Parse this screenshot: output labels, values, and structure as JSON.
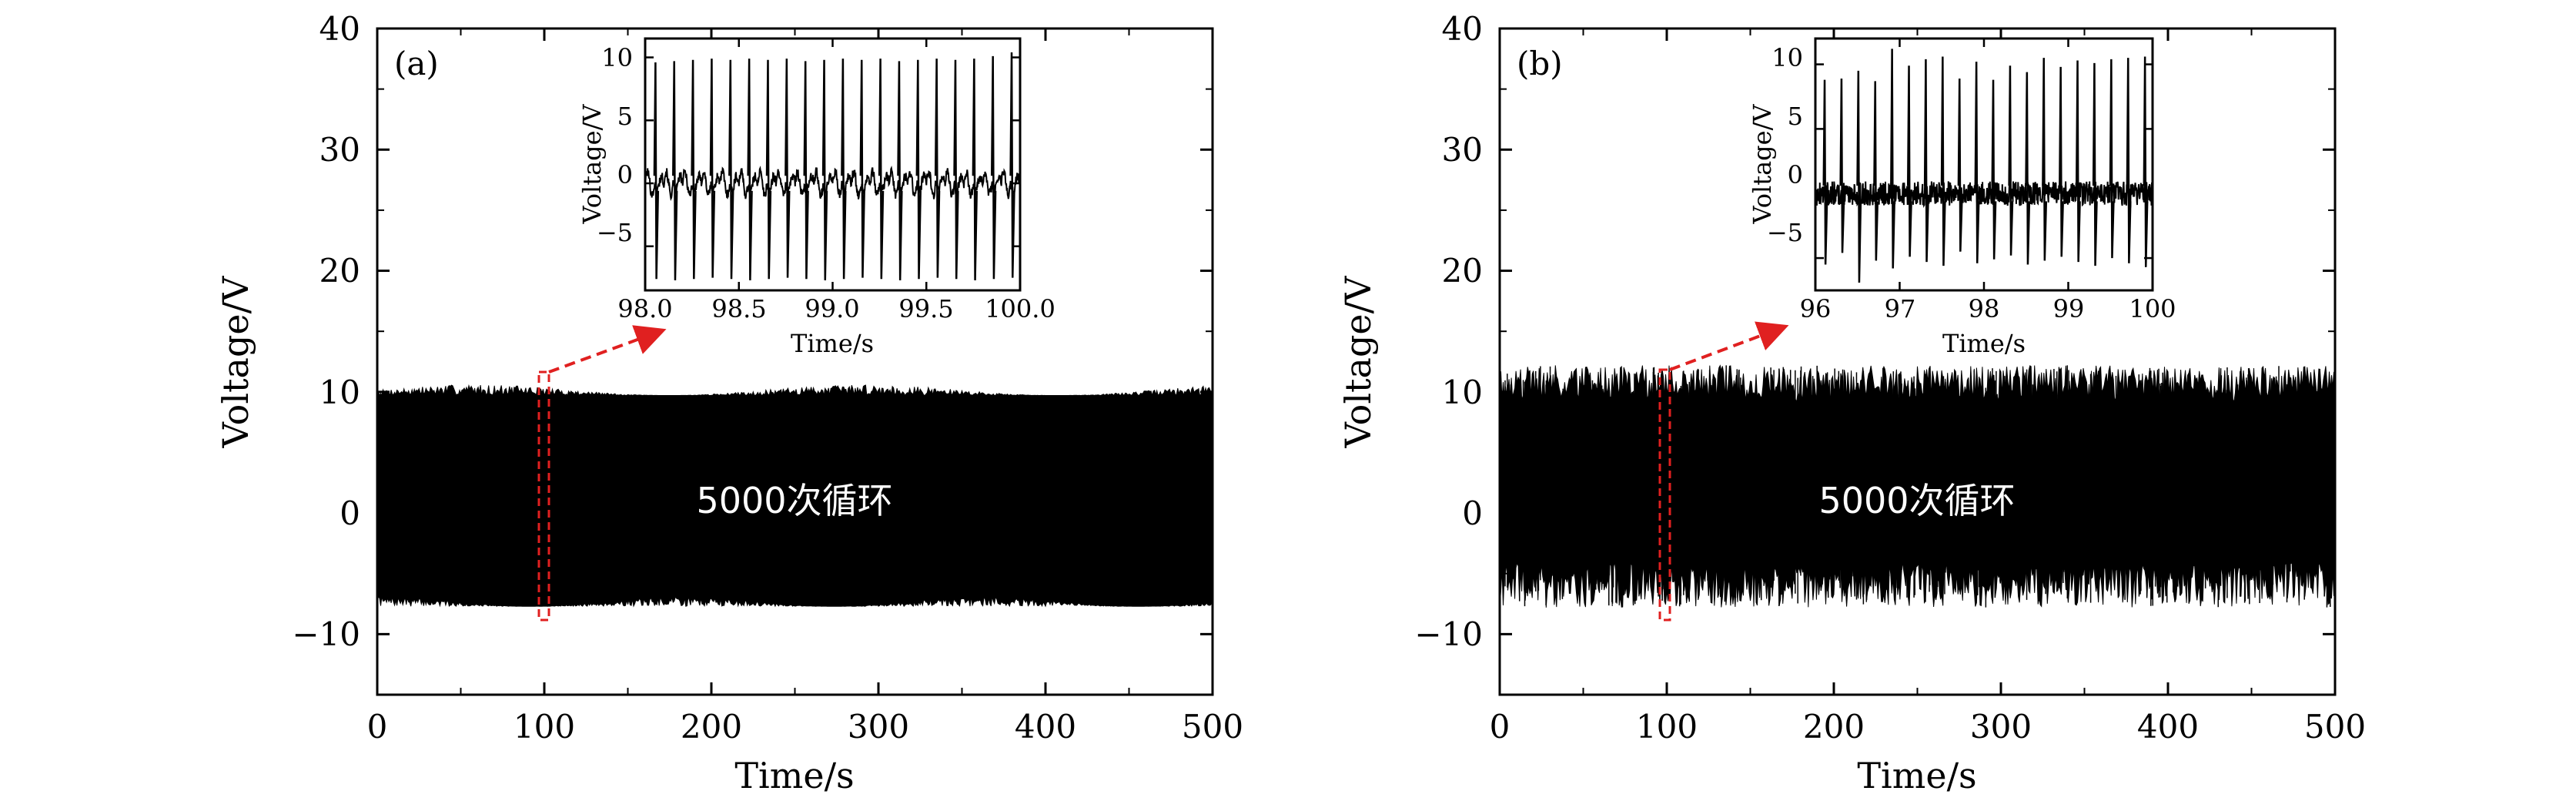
{
  "figure": {
    "background": "#ffffff",
    "ink": "#000000",
    "highlight": "#e02020",
    "overlay_text": "#ffffff"
  },
  "chart_data": [
    {
      "type": "line",
      "panel_label": "(a)",
      "xlabel": "Time/s",
      "ylabel": "Voltage/V",
      "xlim": [
        0,
        500
      ],
      "ylim": [
        -15,
        40
      ],
      "xticks": [
        0,
        100,
        200,
        300,
        400,
        500
      ],
      "yticks": [
        -10,
        0,
        10,
        20,
        30,
        40
      ],
      "ytick_labels": [
        "−10",
        "0",
        "10",
        "20",
        "30",
        "40"
      ],
      "annotation": "5000次循环",
      "signal": {
        "envelope_max": 10.2,
        "envelope_min": -7.8,
        "highlight_window": [
          98,
          100
        ]
      },
      "inset": {
        "type": "line",
        "xlabel": "Time/s",
        "ylabel": "Voltage/V",
        "xlim": [
          98,
          100
        ],
        "ylim": [
          -8.5,
          11.5
        ],
        "xticks": [
          98.0,
          98.5,
          99.0,
          99.5,
          100.0
        ],
        "xtick_labels": [
          "98.0",
          "98.5",
          "99.0",
          "99.5",
          "100.0"
        ],
        "yticks": [
          -5,
          0,
          5,
          10
        ],
        "ytick_labels": [
          "−5",
          "0",
          "5",
          "10"
        ],
        "spike_count": 20,
        "spike_peaks": [
          9.6,
          9.7,
          9.8,
          9.9,
          9.8,
          9.9,
          9.8,
          9.9,
          9.7,
          9.8,
          9.9,
          9.8,
          9.9,
          9.7,
          9.8,
          9.9,
          9.8,
          9.9,
          10.1,
          10.4
        ],
        "spike_troughs": [
          -7.6,
          -7.7,
          -7.6,
          -7.5,
          -7.6,
          -7.7,
          -7.6,
          -7.5,
          -7.6,
          -7.7,
          -7.6,
          -7.5,
          -7.6,
          -7.7,
          -7.6,
          -7.5,
          -7.6,
          -7.7,
          -7.6,
          -7.5
        ],
        "baseline_low": -1.5,
        "baseline_high": 1.2
      }
    },
    {
      "type": "line",
      "panel_label": "(b)",
      "xlabel": "Time/s",
      "ylabel": "Voltage/V",
      "xlim": [
        0,
        500
      ],
      "ylim": [
        -15,
        40
      ],
      "xticks": [
        0,
        100,
        200,
        300,
        400,
        500
      ],
      "yticks": [
        -10,
        0,
        10,
        20,
        30,
        40
      ],
      "ytick_labels": [
        "−10",
        "0",
        "10",
        "20",
        "30",
        "40"
      ],
      "annotation": "5000次循环",
      "signal": {
        "envelope_max": 12.2,
        "envelope_min": -7.8,
        "highlight_window": [
          96,
          100
        ]
      },
      "inset": {
        "type": "line",
        "xlabel": "Time/s",
        "ylabel": "Voltage/V",
        "xlim": [
          96,
          100
        ],
        "ylim": [
          -7.5,
          12
        ],
        "xticks": [
          96,
          97,
          98,
          99,
          100
        ],
        "xtick_labels": [
          "96",
          "97",
          "98",
          "99",
          "100"
        ],
        "yticks": [
          -5,
          0,
          5,
          10
        ],
        "ytick_labels": [
          "−5",
          "0",
          "5",
          "10"
        ],
        "spike_count": 20,
        "spike_peaks": [
          8.8,
          8.9,
          9.5,
          8.7,
          11.2,
          9.9,
          10.4,
          10.6,
          8.9,
          10.2,
          8.8,
          9.9,
          9.4,
          10.5,
          9.8,
          10.3,
          10.1,
          10.4,
          10.5,
          10.6
        ],
        "spike_troughs": [
          -5.5,
          -4.6,
          -6.9,
          -5.2,
          -5.8,
          -4.9,
          -5.3,
          -5.6,
          -4.5,
          -5.4,
          -5.1,
          -4.8,
          -5.5,
          -5.2,
          -4.9,
          -5.3,
          -5.6,
          -5.0,
          -5.4,
          -5.7
        ],
        "baseline_low": -1.0,
        "baseline_high": 0.9
      }
    }
  ]
}
